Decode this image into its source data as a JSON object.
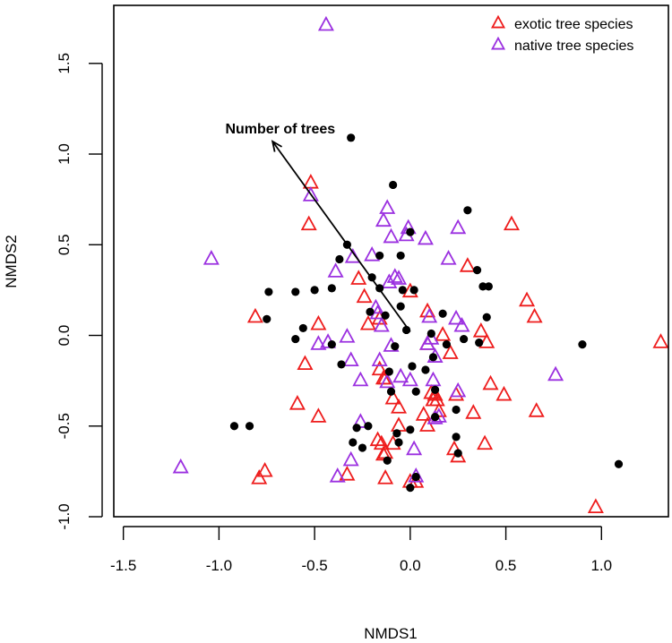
{
  "chart_data": {
    "type": "scatter",
    "title": "",
    "xlabel": "NMDS1",
    "ylabel": "NMDS2",
    "xlim": [
      -1.55,
      1.35
    ],
    "ylim": [
      -1.0,
      1.82
    ],
    "x_ticks": [
      -1.5,
      -1.0,
      -0.5,
      0.0,
      0.5,
      1.0
    ],
    "x_tick_labels": [
      "-1.5",
      "-1.0",
      "-0.5",
      "0.0",
      "0.5",
      "1.0"
    ],
    "y_ticks": [
      -1.0,
      -0.5,
      0.0,
      0.5,
      1.0,
      1.5
    ],
    "y_tick_labels": [
      "-1.0",
      "-0.5",
      "0.0",
      "0.5",
      "1.0",
      "1.5"
    ],
    "legend_position": "top-right",
    "legend": [
      {
        "label": "exotic tree species",
        "color": "#ee1c1c",
        "marker": "open-triangle"
      },
      {
        "label": "native tree species",
        "color": "#9b30e0",
        "marker": "open-triangle"
      }
    ],
    "vector": {
      "label": "Number of trees",
      "from": [
        0.0,
        0.02
      ],
      "to": [
        -0.72,
        1.07
      ],
      "color": "#000000"
    },
    "series": [
      {
        "name": "exotic tree species",
        "marker": "open-triangle",
        "color": "#ee1c1c",
        "points": [
          [
            -0.52,
            0.84
          ],
          [
            -0.53,
            0.61
          ],
          [
            -0.81,
            0.1
          ],
          [
            -0.48,
            0.06
          ],
          [
            -0.55,
            -0.16
          ],
          [
            -0.59,
            -0.38
          ],
          [
            -0.48,
            -0.45
          ],
          [
            -0.76,
            -0.75
          ],
          [
            -0.79,
            -0.79
          ],
          [
            -0.33,
            -0.77
          ],
          [
            -0.27,
            0.31
          ],
          [
            -0.24,
            0.21
          ],
          [
            -0.22,
            0.06
          ],
          [
            -0.16,
            0.09
          ],
          [
            -0.16,
            -0.19
          ],
          [
            -0.14,
            -0.24
          ],
          [
            -0.13,
            -0.24
          ],
          [
            -0.17,
            -0.58
          ],
          [
            -0.15,
            -0.6
          ],
          [
            -0.13,
            -0.65
          ],
          [
            -0.14,
            -0.66
          ],
          [
            -0.13,
            -0.79
          ],
          [
            -0.09,
            -0.35
          ],
          [
            -0.06,
            -0.4
          ],
          [
            -0.06,
            -0.5
          ],
          [
            -0.09,
            -0.6
          ],
          [
            0.0,
            0.24
          ],
          [
            0.0,
            -0.81
          ],
          [
            0.03,
            -0.81
          ],
          [
            0.09,
            0.13
          ],
          [
            0.09,
            -0.05
          ],
          [
            0.07,
            -0.44
          ],
          [
            0.09,
            -0.5
          ],
          [
            0.11,
            -0.32
          ],
          [
            0.13,
            -0.33
          ],
          [
            0.12,
            -0.36
          ],
          [
            0.14,
            -0.36
          ],
          [
            0.17,
            0.0
          ],
          [
            0.15,
            -0.42
          ],
          [
            0.21,
            -0.1
          ],
          [
            0.23,
            -0.63
          ],
          [
            0.25,
            -0.67
          ],
          [
            0.24,
            -0.33
          ],
          [
            0.3,
            0.38
          ],
          [
            0.33,
            -0.43
          ],
          [
            0.37,
            0.02
          ],
          [
            0.4,
            -0.04
          ],
          [
            0.42,
            -0.27
          ],
          [
            0.39,
            -0.6
          ],
          [
            0.53,
            0.61
          ],
          [
            0.49,
            -0.33
          ],
          [
            0.61,
            0.19
          ],
          [
            0.65,
            0.1
          ],
          [
            0.66,
            -0.42
          ],
          [
            0.97,
            -0.95
          ],
          [
            1.31,
            -0.04
          ]
        ]
      },
      {
        "name": "native tree species",
        "marker": "open-triangle",
        "color": "#9b30e0",
        "points": [
          [
            -0.44,
            1.71
          ],
          [
            -0.52,
            0.77
          ],
          [
            -1.04,
            0.42
          ],
          [
            -1.2,
            -0.73
          ],
          [
            -0.48,
            -0.05
          ],
          [
            -0.43,
            -0.04
          ],
          [
            -0.33,
            -0.01
          ],
          [
            -0.31,
            -0.14
          ],
          [
            -0.3,
            0.43
          ],
          [
            -0.39,
            0.35
          ],
          [
            -0.38,
            -0.78
          ],
          [
            -0.31,
            -0.69
          ],
          [
            -0.26,
            -0.25
          ],
          [
            -0.26,
            -0.48
          ],
          [
            -0.2,
            0.44
          ],
          [
            -0.18,
            0.15
          ],
          [
            -0.17,
            0.12
          ],
          [
            -0.16,
            -0.14
          ],
          [
            -0.15,
            0.05
          ],
          [
            -0.14,
            0.63
          ],
          [
            -0.12,
            0.7
          ],
          [
            -0.11,
            0.29
          ],
          [
            -0.1,
            0.54
          ],
          [
            -0.08,
            0.32
          ],
          [
            -0.06,
            0.31
          ],
          [
            -0.1,
            -0.06
          ],
          [
            -0.12,
            -0.26
          ],
          [
            -0.05,
            -0.23
          ],
          [
            -0.02,
            0.55
          ],
          [
            -0.01,
            0.59
          ],
          [
            0.0,
            -0.25
          ],
          [
            0.02,
            -0.63
          ],
          [
            0.03,
            -0.78
          ],
          [
            0.08,
            0.53
          ],
          [
            0.09,
            -0.05
          ],
          [
            0.1,
            0.1
          ],
          [
            0.11,
            -0.02
          ],
          [
            0.12,
            -0.25
          ],
          [
            0.13,
            -0.12
          ],
          [
            0.13,
            -0.46
          ],
          [
            0.15,
            -0.45
          ],
          [
            0.2,
            0.42
          ],
          [
            0.24,
            0.09
          ],
          [
            0.25,
            -0.31
          ],
          [
            0.25,
            0.59
          ],
          [
            0.27,
            0.05
          ],
          [
            0.76,
            -0.22
          ]
        ]
      },
      {
        "name": "sites",
        "marker": "filled-circle",
        "color": "#000000",
        "points": [
          [
            -0.31,
            1.09
          ],
          [
            -0.09,
            0.83
          ],
          [
            -0.37,
            0.42
          ],
          [
            -0.33,
            0.5
          ],
          [
            -0.74,
            0.24
          ],
          [
            -0.6,
            0.24
          ],
          [
            -0.75,
            0.09
          ],
          [
            -0.56,
            0.04
          ],
          [
            -0.6,
            -0.02
          ],
          [
            -0.41,
            0.26
          ],
          [
            -0.5,
            0.25
          ],
          [
            -0.41,
            -0.05
          ],
          [
            -0.36,
            -0.16
          ],
          [
            -0.84,
            -0.5
          ],
          [
            -0.92,
            -0.5
          ],
          [
            -0.2,
            0.32
          ],
          [
            -0.21,
            0.13
          ],
          [
            -0.16,
            0.44
          ],
          [
            -0.16,
            0.26
          ],
          [
            -0.13,
            0.11
          ],
          [
            -0.08,
            -0.06
          ],
          [
            -0.11,
            -0.2
          ],
          [
            -0.1,
            -0.31
          ],
          [
            -0.05,
            0.44
          ],
          [
            -0.04,
            0.25
          ],
          [
            -0.05,
            0.16
          ],
          [
            -0.02,
            0.03
          ],
          [
            -0.06,
            -0.59
          ],
          [
            -0.12,
            -0.69
          ],
          [
            -0.25,
            -0.62
          ],
          [
            -0.3,
            -0.59
          ],
          [
            -0.28,
            -0.51
          ],
          [
            -0.22,
            -0.5
          ],
          [
            -0.07,
            -0.54
          ],
          [
            0.0,
            0.57
          ],
          [
            0.02,
            0.25
          ],
          [
            0.01,
            -0.17
          ],
          [
            0.03,
            -0.31
          ],
          [
            0.0,
            -0.52
          ],
          [
            0.0,
            -0.84
          ],
          [
            0.03,
            -0.78
          ],
          [
            0.08,
            -0.19
          ],
          [
            0.11,
            0.01
          ],
          [
            0.12,
            -0.12
          ],
          [
            0.13,
            -0.3
          ],
          [
            0.13,
            -0.45
          ],
          [
            0.17,
            0.12
          ],
          [
            0.19,
            -0.05
          ],
          [
            0.24,
            -0.41
          ],
          [
            0.24,
            -0.56
          ],
          [
            0.25,
            -0.65
          ],
          [
            0.28,
            -0.02
          ],
          [
            0.3,
            0.69
          ],
          [
            0.35,
            0.36
          ],
          [
            0.36,
            -0.04
          ],
          [
            0.38,
            0.27
          ],
          [
            0.41,
            0.27
          ],
          [
            0.4,
            0.1
          ],
          [
            0.9,
            -0.05
          ],
          [
            1.09,
            -0.71
          ]
        ]
      }
    ]
  }
}
